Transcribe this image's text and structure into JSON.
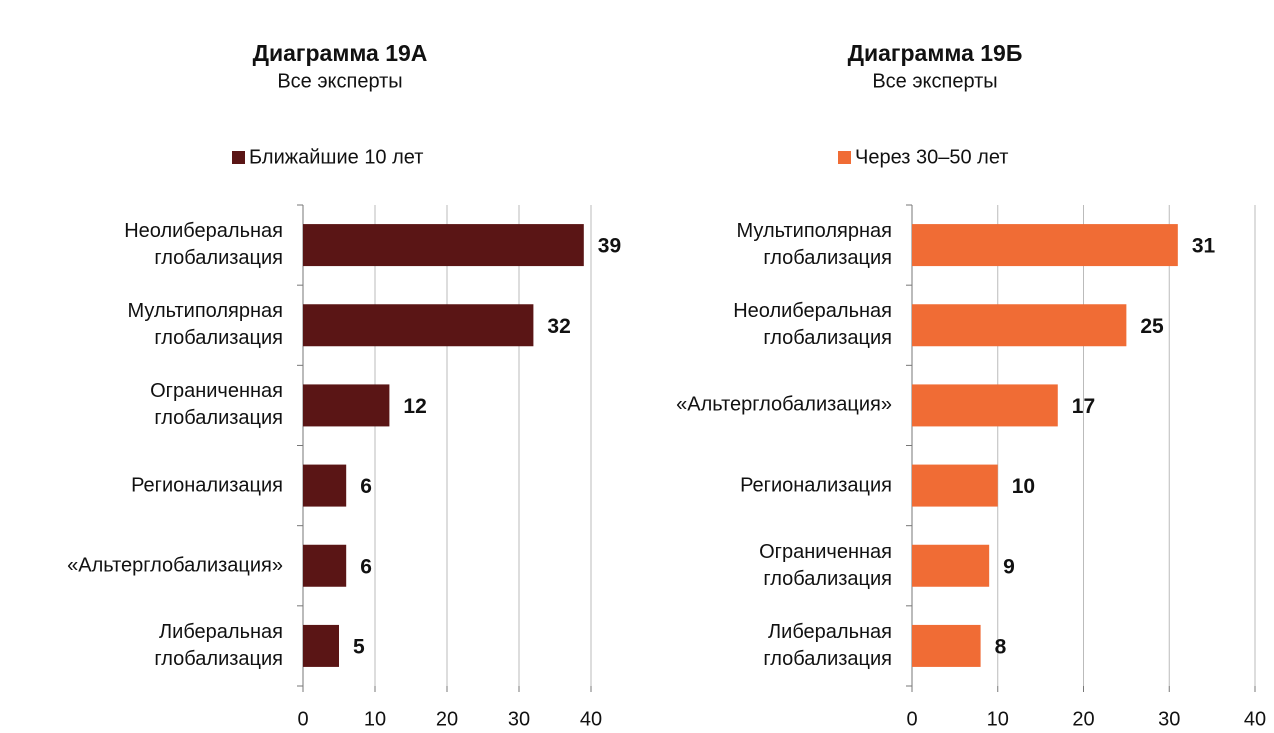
{
  "chart_data": [
    {
      "type": "bar",
      "orientation": "horizontal",
      "title": "Диаграмма 19А",
      "subtitle": "Все эксперты",
      "categories": [
        "Неолиберальная\nглобализация",
        "Мультиполярная\nглобализация",
        "Ограниченная\nглобализация",
        "Регионализация",
        "«Альтерглобализация»",
        "Либеральная\nглобализация"
      ],
      "series": [
        {
          "name": "Ближайшие 10 лет",
          "color": "#5a1515",
          "values": [
            39,
            32,
            12,
            6,
            6,
            5
          ]
        }
      ],
      "xlim": [
        0,
        40
      ],
      "xticks": [
        0,
        10,
        20,
        30,
        40
      ],
      "grid": true,
      "legend": "top"
    },
    {
      "type": "bar",
      "orientation": "horizontal",
      "title": "Диаграмма 19Б",
      "subtitle": "Все эксперты",
      "categories": [
        "Мультиполярная\nглобализация",
        "Неолиберальная\nглобализация",
        "«Альтерглобализация»",
        "Регионализация",
        "Ограниченная\nглобализация",
        "Либеральная\nглобализация"
      ],
      "series": [
        {
          "name": "Через 30–50 лет",
          "color": "#f06c35",
          "values": [
            31,
            25,
            17,
            10,
            9,
            8
          ]
        }
      ],
      "xlim": [
        0,
        40
      ],
      "xticks": [
        0,
        10,
        20,
        30,
        40
      ],
      "grid": true,
      "legend": "top"
    }
  ]
}
